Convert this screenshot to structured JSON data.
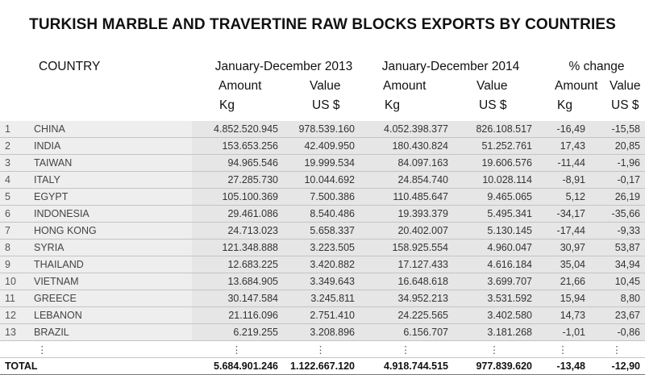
{
  "title": "TURKISH MARBLE AND TRAVERTINE RAW BLOCKS EXPORTS BY COUNTRIES",
  "headers": {
    "country": "COUNTRY",
    "period_2013": "January-December 2013",
    "period_2014": "January-December 2014",
    "pct_change": "% change",
    "amount": "Amount",
    "value": "Value",
    "kg": "Kg",
    "usd": "US $"
  },
  "rows": [
    {
      "rank": "1",
      "country": "CHINA",
      "amount_2013": "4.852.520.945",
      "value_2013": "978.539.160",
      "amount_2014": "4.052.398.377",
      "value_2014": "826.108.517",
      "pct_amount": "-16,49",
      "pct_value": "-15,58"
    },
    {
      "rank": "2",
      "country": "INDIA",
      "amount_2013": "153.653.256",
      "value_2013": "42.409.950",
      "amount_2014": "180.430.824",
      "value_2014": "51.252.761",
      "pct_amount": "17,43",
      "pct_value": "20,85"
    },
    {
      "rank": "3",
      "country": "TAIWAN",
      "amount_2013": "94.965.546",
      "value_2013": "19.999.534",
      "amount_2014": "84.097.163",
      "value_2014": "19.606.576",
      "pct_amount": "-11,44",
      "pct_value": "-1,96"
    },
    {
      "rank": "4",
      "country": "ITALY",
      "amount_2013": "27.285.730",
      "value_2013": "10.044.692",
      "amount_2014": "24.854.740",
      "value_2014": "10.028.114",
      "pct_amount": "-8,91",
      "pct_value": "-0,17"
    },
    {
      "rank": "5",
      "country": "EGYPT",
      "amount_2013": "105.100.369",
      "value_2013": "7.500.386",
      "amount_2014": "110.485.647",
      "value_2014": "9.465.065",
      "pct_amount": "5,12",
      "pct_value": "26,19"
    },
    {
      "rank": "6",
      "country": "INDONESIA",
      "amount_2013": "29.461.086",
      "value_2013": "8.540.486",
      "amount_2014": "19.393.379",
      "value_2014": "5.495.341",
      "pct_amount": "-34,17",
      "pct_value": "-35,66"
    },
    {
      "rank": "7",
      "country": "HONG KONG",
      "amount_2013": "24.713.023",
      "value_2013": "5.658.337",
      "amount_2014": "20.402.007",
      "value_2014": "5.130.145",
      "pct_amount": "-17,44",
      "pct_value": "-9,33"
    },
    {
      "rank": "8",
      "country": "SYRIA",
      "amount_2013": "121.348.888",
      "value_2013": "3.223.505",
      "amount_2014": "158.925.554",
      "value_2014": "4.960.047",
      "pct_amount": "30,97",
      "pct_value": "53,87"
    },
    {
      "rank": "9",
      "country": "THAILAND",
      "amount_2013": "12.683.225",
      "value_2013": "3.420.882",
      "amount_2014": "17.127.433",
      "value_2014": "4.616.184",
      "pct_amount": "35,04",
      "pct_value": "34,94"
    },
    {
      "rank": "10",
      "country": "VIETNAM",
      "amount_2013": "13.684.905",
      "value_2013": "3.349.643",
      "amount_2014": "16.648.618",
      "value_2014": "3.699.707",
      "pct_amount": "21,66",
      "pct_value": "10,45"
    },
    {
      "rank": "11",
      "country": "GREECE",
      "amount_2013": "30.147.584",
      "value_2013": "3.245.811",
      "amount_2014": "34.952.213",
      "value_2014": "3.531.592",
      "pct_amount": "15,94",
      "pct_value": "8,80"
    },
    {
      "rank": "12",
      "country": "LEBANON",
      "amount_2013": "21.116.096",
      "value_2013": "2.751.410",
      "amount_2014": "24.225.565",
      "value_2014": "3.402.580",
      "pct_amount": "14,73",
      "pct_value": "23,67"
    },
    {
      "rank": "13",
      "country": "BRAZIL",
      "amount_2013": "6.219.255",
      "value_2013": "3.208.896",
      "amount_2014": "6.156.707",
      "value_2014": "3.181.268",
      "pct_amount": "-1,01",
      "pct_value": "-0,86"
    }
  ],
  "ellipsis": "⋮",
  "total": {
    "label": "TOTAL",
    "amount_2013": "5.684.901.246",
    "value_2013": "1.122.667.120",
    "amount_2014": "4.918.744.515",
    "value_2014": "977.839.620",
    "pct_amount": "-13,48",
    "pct_value": "-12,90"
  }
}
